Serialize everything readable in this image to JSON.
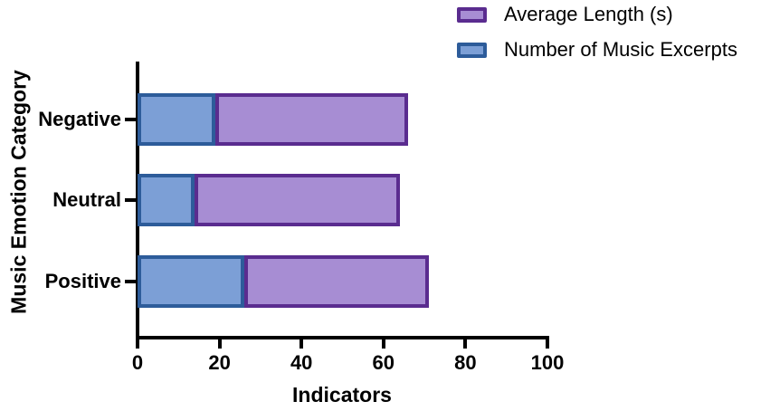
{
  "figure": {
    "background": "#ffffff",
    "text_color": "#000000",
    "axis_color": "#000000"
  },
  "chart_data": {
    "type": "bar",
    "orientation": "horizontal",
    "stacked": true,
    "title": "",
    "xlabel": "Indicators",
    "ylabel": "Music Emotion Category",
    "categories": [
      "Negative",
      "Neutral",
      "Positive"
    ],
    "series": [
      {
        "name": "Number of Music Excerpts",
        "values": [
          19,
          14,
          26
        ],
        "fill": "#7C9FD6",
        "border": "#2D5C9A"
      },
      {
        "name": "Average Length (s)",
        "values": [
          47,
          50,
          45
        ],
        "fill": "#A78DD3",
        "border": "#5A2C8F"
      }
    ],
    "totals": [
      66,
      64,
      71
    ],
    "xlim": [
      0,
      100
    ],
    "xticks": [
      "0",
      "20",
      "40",
      "60",
      "80",
      "100"
    ],
    "xtick_values": [
      0,
      20,
      40,
      60,
      80,
      100
    ],
    "legend": [
      {
        "label": "Average Length (s)",
        "fill": "#A78DD3",
        "border": "#5A2C8F"
      },
      {
        "label": "Number of Music Excerpts",
        "fill": "#7C9FD6",
        "border": "#2D5C9A"
      }
    ],
    "legend_position": "top-right",
    "grid": false
  }
}
